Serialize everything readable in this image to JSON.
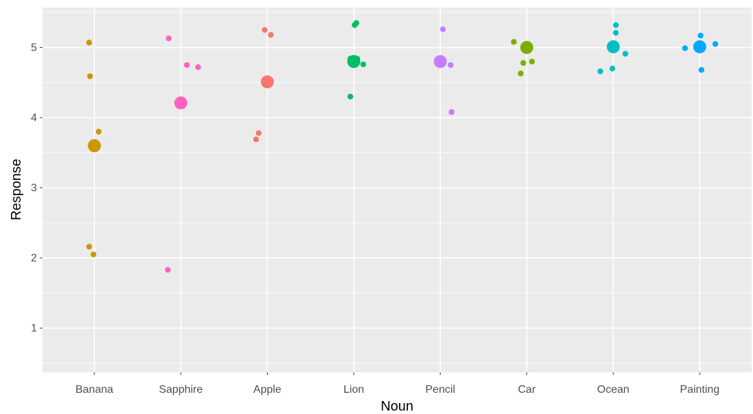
{
  "chart_data": {
    "type": "scatter",
    "xlabel": "Noun",
    "ylabel": "Response",
    "categories": [
      "Banana",
      "Sapphire",
      "Apple",
      "Lion",
      "Pencil",
      "Car",
      "Ocean",
      "Painting"
    ],
    "ylim": [
      0.37,
      5.57
    ],
    "yticks": [
      1,
      2,
      3,
      4,
      5
    ],
    "grid": true,
    "legend": "none",
    "panel_background": "#ebebeb",
    "grid_color": "#ffffff",
    "colors": {
      "Banana": "#cd9600",
      "Sapphire": "#ff61c3",
      "Apple": "#f8766d",
      "Lion": "#00be67",
      "Pencil": "#c77cff",
      "Car": "#7cae00",
      "Ocean": "#00bfc4",
      "Painting": "#00a9ff"
    },
    "means": [
      {
        "noun": "Banana",
        "y": 3.6
      },
      {
        "noun": "Sapphire",
        "y": 4.21
      },
      {
        "noun": "Apple",
        "y": 4.51
      },
      {
        "noun": "Lion",
        "y": 4.8
      },
      {
        "noun": "Pencil",
        "y": 4.8
      },
      {
        "noun": "Car",
        "y": 5.0
      },
      {
        "noun": "Ocean",
        "y": 5.01
      },
      {
        "noun": "Painting",
        "y": 5.01
      }
    ],
    "points": [
      {
        "noun": "Banana",
        "x": 0.94,
        "y": 5.07
      },
      {
        "noun": "Banana",
        "x": 0.95,
        "y": 4.59
      },
      {
        "noun": "Banana",
        "x": 1.05,
        "y": 3.8
      },
      {
        "noun": "Banana",
        "x": 0.94,
        "y": 2.16
      },
      {
        "noun": "Banana",
        "x": 0.99,
        "y": 2.05
      },
      {
        "noun": "Sapphire",
        "x": 1.86,
        "y": 5.13
      },
      {
        "noun": "Sapphire",
        "x": 2.07,
        "y": 4.75
      },
      {
        "noun": "Sapphire",
        "x": 2.2,
        "y": 4.72
      },
      {
        "noun": "Sapphire",
        "x": 1.85,
        "y": 1.83
      },
      {
        "noun": "Apple",
        "x": 2.97,
        "y": 5.25
      },
      {
        "noun": "Apple",
        "x": 3.04,
        "y": 5.18
      },
      {
        "noun": "Apple",
        "x": 2.9,
        "y": 3.78
      },
      {
        "noun": "Apple",
        "x": 2.87,
        "y": 3.69
      },
      {
        "noun": "Lion",
        "x": 4.03,
        "y": 5.35
      },
      {
        "noun": "Lion",
        "x": 4.01,
        "y": 5.32
      },
      {
        "noun": "Lion",
        "x": 3.96,
        "y": 4.84
      },
      {
        "noun": "Lion",
        "x": 4.04,
        "y": 4.84
      },
      {
        "noun": "Lion",
        "x": 3.98,
        "y": 4.76
      },
      {
        "noun": "Lion",
        "x": 4.11,
        "y": 4.76
      },
      {
        "noun": "Lion",
        "x": 3.96,
        "y": 4.3
      },
      {
        "noun": "Pencil",
        "x": 5.03,
        "y": 5.26
      },
      {
        "noun": "Pencil",
        "x": 5.12,
        "y": 4.75
      },
      {
        "noun": "Pencil",
        "x": 5.13,
        "y": 4.08
      },
      {
        "noun": "Car",
        "x": 5.85,
        "y": 5.08
      },
      {
        "noun": "Car",
        "x": 5.96,
        "y": 4.78
      },
      {
        "noun": "Car",
        "x": 6.06,
        "y": 4.8
      },
      {
        "noun": "Car",
        "x": 5.93,
        "y": 4.63
      },
      {
        "noun": "Ocean",
        "x": 7.03,
        "y": 5.32
      },
      {
        "noun": "Ocean",
        "x": 7.03,
        "y": 5.21
      },
      {
        "noun": "Ocean",
        "x": 7.14,
        "y": 4.91
      },
      {
        "noun": "Ocean",
        "x": 6.99,
        "y": 4.7
      },
      {
        "noun": "Ocean",
        "x": 6.85,
        "y": 4.66
      },
      {
        "noun": "Painting",
        "x": 7.83,
        "y": 4.99
      },
      {
        "noun": "Painting",
        "x": 8.01,
        "y": 5.17
      },
      {
        "noun": "Painting",
        "x": 8.18,
        "y": 5.05
      },
      {
        "noun": "Painting",
        "x": 8.02,
        "y": 4.68
      }
    ]
  }
}
